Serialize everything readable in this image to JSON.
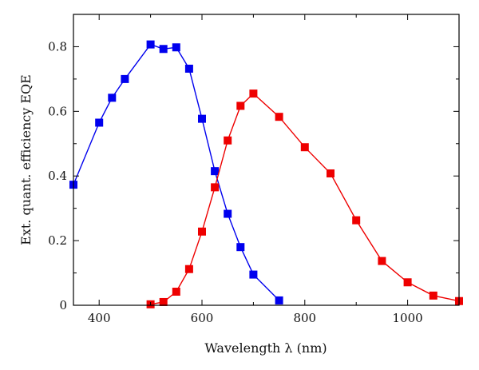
{
  "chart_data": {
    "type": "line",
    "xlabel": "Wavelength λ (nm)",
    "ylabel": "Ext. quant. efficiency EQE",
    "xlim": [
      350,
      1100
    ],
    "ylim": [
      0,
      0.9
    ],
    "x_ticks": [
      400,
      600,
      800,
      1000
    ],
    "y_ticks": [
      0,
      0.2,
      0.4,
      0.6,
      0.8
    ],
    "x_tick_labels": [
      "400",
      "600",
      "800",
      "1000"
    ],
    "y_tick_labels": [
      "0",
      "0.2",
      "0.4",
      "0.6",
      "0.8"
    ],
    "grid": false,
    "legend": "none",
    "series": [
      {
        "color": "#0000ee",
        "marker": "square",
        "points": [
          [
            350,
            0.373
          ],
          [
            400,
            0.565
          ],
          [
            425,
            0.642
          ],
          [
            450,
            0.7
          ],
          [
            500,
            0.807
          ],
          [
            525,
            0.793
          ],
          [
            550,
            0.798
          ],
          [
            575,
            0.732
          ],
          [
            600,
            0.577
          ],
          [
            625,
            0.415
          ],
          [
            650,
            0.283
          ],
          [
            675,
            0.18
          ],
          [
            700,
            0.095
          ],
          [
            750,
            0.015
          ]
        ]
      },
      {
        "color": "#ee0000",
        "marker": "square",
        "points": [
          [
            500,
            0.003
          ],
          [
            525,
            0.01
          ],
          [
            550,
            0.042
          ],
          [
            575,
            0.112
          ],
          [
            600,
            0.228
          ],
          [
            625,
            0.365
          ],
          [
            650,
            0.51
          ],
          [
            675,
            0.617
          ],
          [
            700,
            0.655
          ],
          [
            750,
            0.583
          ],
          [
            800,
            0.489
          ],
          [
            850,
            0.408
          ],
          [
            900,
            0.263
          ],
          [
            950,
            0.137
          ],
          [
            1000,
            0.071
          ],
          [
            1050,
            0.03
          ],
          [
            1100,
            0.013
          ]
        ]
      }
    ]
  }
}
